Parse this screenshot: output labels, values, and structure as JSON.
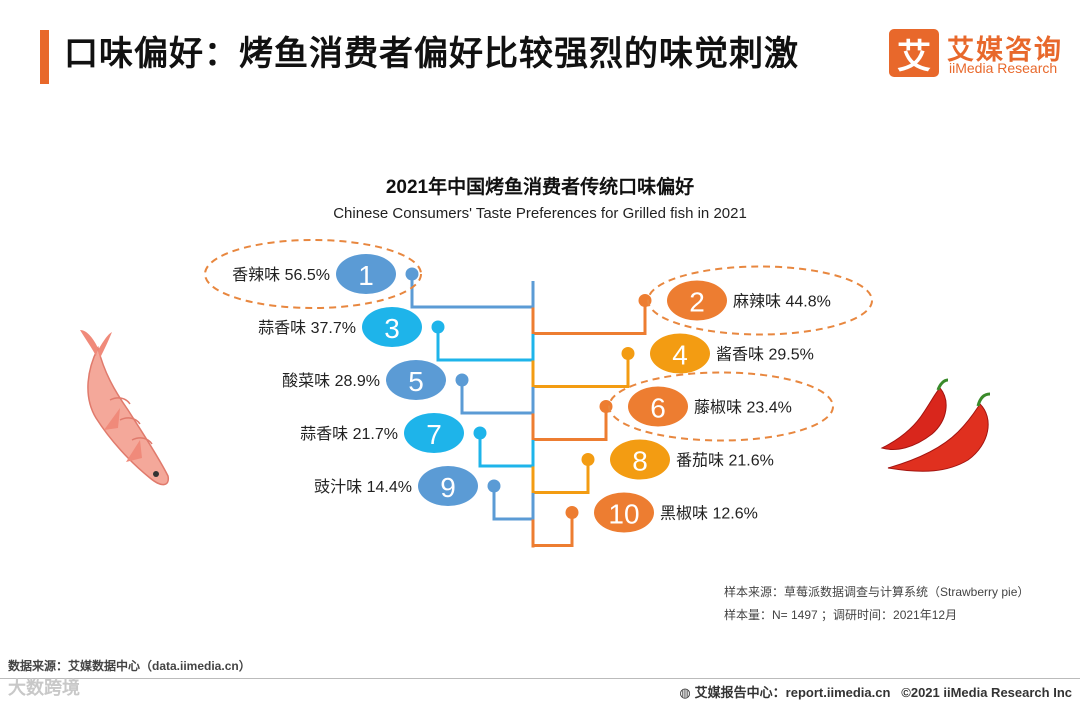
{
  "header": {
    "title": "口味偏好：烤鱼消费者偏好比较强烈的味觉刺激",
    "logo_mark": "艾",
    "logo_cn": "艾媒咨询",
    "logo_en": "iiMedia Research"
  },
  "chart_data": {
    "type": "ranked-tree",
    "title": "2021年中国烤鱼消费者传统口味偏好",
    "subtitle": "Chinese Consumers' Taste Preferences for Grilled fish in 2021",
    "unit": "%",
    "items": [
      {
        "rank": "1",
        "name": "香辣味",
        "value": 56.5,
        "label": "香辣味 56.5%",
        "side": "left",
        "color": "#5b9bd5",
        "highlight": true
      },
      {
        "rank": "2",
        "name": "麻辣味",
        "value": 44.8,
        "label": "麻辣味 44.8%",
        "side": "right",
        "color": "#ed7d31",
        "highlight": true
      },
      {
        "rank": "3",
        "name": "蒜香味",
        "value": 37.7,
        "label": "蒜香味 37.7%",
        "side": "left",
        "color": "#1eb4ea",
        "highlight": false
      },
      {
        "rank": "4",
        "name": "酱香味",
        "value": 29.5,
        "label": "酱香味 29.5%",
        "side": "right",
        "color": "#f39c12",
        "highlight": false
      },
      {
        "rank": "5",
        "name": "酸菜味",
        "value": 28.9,
        "label": "酸菜味 28.9%",
        "side": "left",
        "color": "#5b9bd5",
        "highlight": false
      },
      {
        "rank": "6",
        "name": "藤椒味",
        "value": 23.4,
        "label": "藤椒味 23.4%",
        "side": "right",
        "color": "#ed7d31",
        "highlight": true
      },
      {
        "rank": "7",
        "name": "蒜香味",
        "value": 21.7,
        "label": "蒜香味 21.7%",
        "side": "left",
        "color": "#1eb4ea",
        "highlight": false
      },
      {
        "rank": "8",
        "name": "番茄味",
        "value": 21.6,
        "label": "番茄味 21.6%",
        "side": "right",
        "color": "#f39c12",
        "highlight": false
      },
      {
        "rank": "9",
        "name": "豉汁味",
        "value": 14.4,
        "label": "豉汁味 14.4%",
        "side": "left",
        "color": "#5b9bd5",
        "highlight": false
      },
      {
        "rank": "10",
        "name": "黑椒味",
        "value": 12.6,
        "label": "黑椒味 12.6%",
        "side": "right",
        "color": "#ed7d31",
        "highlight": false
      }
    ]
  },
  "notes": {
    "source": "样本来源：草莓派数据调查与计算系统（Strawberry pie）",
    "sample": "样本量：N= 1497 ；调研时间：2021年12月"
  },
  "footer": {
    "data_source": "数据来源：艾媒数据中心（data.iimedia.cn）",
    "report_center": "艾媒报告中心：report.iimedia.cn",
    "copyright": "©2021  iiMedia Research  Inc",
    "watermark": "大数跨境"
  },
  "colors": {
    "accent": "#e8682b",
    "blue": "#5b9bd5",
    "cyan": "#1eb4ea",
    "orange": "#ed7d31",
    "amber": "#f39c12"
  }
}
